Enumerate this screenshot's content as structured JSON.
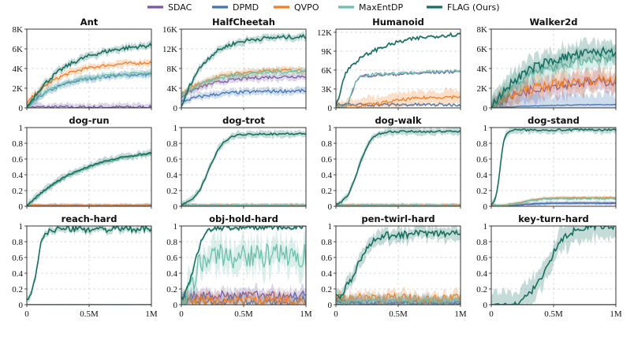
{
  "legend": [
    {
      "name": "SDAC",
      "color": "#7b58a6"
    },
    {
      "name": "DPMD",
      "color": "#3f74b2"
    },
    {
      "name": "QVPO",
      "color": "#f07f26"
    },
    {
      "name": "MaxEntDP",
      "color": "#6cc0ac"
    },
    {
      "name": "FLAG (Ours)",
      "color": "#176f60"
    }
  ],
  "chart_data": [
    {
      "type": "line",
      "title": "Ant",
      "xlim": [
        0,
        1000000
      ],
      "ylim": [
        0,
        8000
      ],
      "yticks": [
        "0",
        "2K",
        "4K",
        "6K",
        "8K"
      ],
      "xticks": [
        "0",
        "0.5M",
        "1M"
      ],
      "series": [
        {
          "name": "SDAC",
          "final": 80
        },
        {
          "name": "DPMD",
          "final": 3500
        },
        {
          "name": "QVPO",
          "final": 4300
        },
        {
          "name": "MaxEntDP",
          "final": 3600
        },
        {
          "name": "FLAG (Ours)",
          "final": 6600
        }
      ]
    },
    {
      "type": "line",
      "title": "HalfCheetah",
      "xlim": [
        0,
        1000000
      ],
      "ylim": [
        0,
        16000
      ],
      "yticks": [
        "0",
        "4K",
        "8K",
        "12K",
        "16K"
      ],
      "xticks": [
        "0",
        "0.5M",
        "1M"
      ],
      "series": [
        {
          "name": "SDAC",
          "final": 6500
        },
        {
          "name": "DPMD",
          "final": 3500
        },
        {
          "name": "QVPO",
          "final": 7800
        },
        {
          "name": "MaxEntDP",
          "final": 7500
        },
        {
          "name": "FLAG (Ours)",
          "final": 14500
        }
      ]
    },
    {
      "type": "line",
      "title": "Humanoid",
      "xlim": [
        0,
        1000000
      ],
      "ylim": [
        0,
        12500
      ],
      "yticks": [
        "0",
        "3K",
        "6K",
        "9K",
        "12K"
      ],
      "xticks": [
        "0",
        "0.5M",
        "1M"
      ],
      "series": [
        {
          "name": "SDAC",
          "final": 5800
        },
        {
          "name": "DPMD",
          "final": 500
        },
        {
          "name": "QVPO",
          "final": 1800
        },
        {
          "name": "MaxEntDP",
          "final": 5900
        },
        {
          "name": "FLAG (Ours)",
          "final": 12000
        }
      ]
    },
    {
      "type": "line",
      "title": "Walker2d",
      "xlim": [
        0,
        1000000
      ],
      "ylim": [
        0,
        8000
      ],
      "yticks": [
        "0",
        "2K",
        "4K",
        "6K",
        "8K"
      ],
      "xticks": [
        "0",
        "0.5M",
        "1M"
      ],
      "series": [
        {
          "name": "SDAC",
          "final": 2800
        },
        {
          "name": "DPMD",
          "final": 400
        },
        {
          "name": "QVPO",
          "final": 3000
        },
        {
          "name": "MaxEntDP",
          "final": 5200
        },
        {
          "name": "FLAG (Ours)",
          "final": 6000
        }
      ]
    },
    {
      "type": "line",
      "title": "dog-run",
      "xlim": [
        0,
        1000000
      ],
      "ylim": [
        0,
        1
      ],
      "yticks": [
        "0",
        "0.2",
        "0.4",
        "0.6",
        "0.8",
        "1"
      ],
      "xticks": [
        "0",
        "0.5M",
        "1M"
      ],
      "series": [
        {
          "name": "SDAC",
          "final": 0.01
        },
        {
          "name": "DPMD",
          "final": 0.01
        },
        {
          "name": "QVPO",
          "final": 0.01
        },
        {
          "name": "MaxEntDP",
          "final": 0.68
        },
        {
          "name": "FLAG (Ours)",
          "final": 0.68
        }
      ]
    },
    {
      "type": "line",
      "title": "dog-trot",
      "xlim": [
        0,
        1000000
      ],
      "ylim": [
        0,
        1
      ],
      "yticks": [
        "0",
        "0.2",
        "0.4",
        "0.6",
        "0.8",
        "1"
      ],
      "xticks": [
        "0",
        "0.5M",
        "1M"
      ],
      "series": [
        {
          "name": "SDAC",
          "final": 0.01
        },
        {
          "name": "DPMD",
          "final": 0.01
        },
        {
          "name": "QVPO",
          "final": 0.01
        },
        {
          "name": "MaxEntDP",
          "final": 0.01
        },
        {
          "name": "FLAG (Ours)",
          "final": 0.92
        }
      ]
    },
    {
      "type": "line",
      "title": "dog-walk",
      "xlim": [
        0,
        1000000
      ],
      "ylim": [
        0,
        1
      ],
      "yticks": [
        "0",
        "0.2",
        "0.4",
        "0.6",
        "0.8",
        "1"
      ],
      "xticks": [
        "0",
        "0.5M",
        "1M"
      ],
      "series": [
        {
          "name": "SDAC",
          "final": 0.01
        },
        {
          "name": "DPMD",
          "final": 0.01
        },
        {
          "name": "QVPO",
          "final": 0.01
        },
        {
          "name": "MaxEntDP",
          "final": 0.01
        },
        {
          "name": "FLAG (Ours)",
          "final": 0.95
        }
      ]
    },
    {
      "type": "line",
      "title": "dog-stand",
      "xlim": [
        0,
        1000000
      ],
      "ylim": [
        0,
        1
      ],
      "yticks": [
        "0",
        "0.2",
        "0.4",
        "0.6",
        "0.8",
        "1"
      ],
      "xticks": [
        "0",
        "0.5M",
        "1M"
      ],
      "series": [
        {
          "name": "SDAC",
          "final": 0.04
        },
        {
          "name": "DPMD",
          "final": 0.04
        },
        {
          "name": "QVPO",
          "final": 0.11
        },
        {
          "name": "MaxEntDP",
          "final": 0.1
        },
        {
          "name": "FLAG (Ours)",
          "final": 0.97
        }
      ]
    },
    {
      "type": "line",
      "title": "reach-hard",
      "xlim": [
        0,
        1000000
      ],
      "ylim": [
        0,
        1
      ],
      "yticks": [
        "0",
        "0.2",
        "0.4",
        "0.6",
        "0.8",
        "1"
      ],
      "xticks": [
        "0",
        "0.5M",
        "1M"
      ],
      "series": [
        {
          "name": "SDAC",
          "final": 0.0
        },
        {
          "name": "DPMD",
          "final": 0.0
        },
        {
          "name": "QVPO",
          "final": 0.0
        },
        {
          "name": "MaxEntDP",
          "final": 0.0
        },
        {
          "name": "FLAG (Ours)",
          "final": 0.96
        }
      ]
    },
    {
      "type": "line",
      "title": "obj-hold-hard",
      "xlim": [
        0,
        1000000
      ],
      "ylim": [
        0,
        1
      ],
      "yticks": [
        "0",
        "0.2",
        "0.4",
        "0.6",
        "0.8",
        "1"
      ],
      "xticks": [
        "0",
        "0.5M",
        "1M"
      ],
      "series": [
        {
          "name": "SDAC",
          "final": 0.12
        },
        {
          "name": "DPMD",
          "final": 0.05
        },
        {
          "name": "QVPO",
          "final": 0.05
        },
        {
          "name": "MaxEntDP",
          "final": 0.62
        },
        {
          "name": "FLAG (Ours)",
          "final": 0.98
        }
      ]
    },
    {
      "type": "line",
      "title": "pen-twirl-hard",
      "xlim": [
        0,
        1000000
      ],
      "ylim": [
        0,
        1
      ],
      "yticks": [
        "0",
        "0.2",
        "0.4",
        "0.6",
        "0.8",
        "1"
      ],
      "xticks": [
        "0",
        "0.5M",
        "1M"
      ],
      "series": [
        {
          "name": "SDAC",
          "final": 0.03
        },
        {
          "name": "DPMD",
          "final": 0.02
        },
        {
          "name": "QVPO",
          "final": 0.08
        },
        {
          "name": "MaxEntDP",
          "final": 0.05
        },
        {
          "name": "FLAG (Ours)",
          "final": 0.9
        }
      ]
    },
    {
      "type": "line",
      "title": "key-turn-hard",
      "xlim": [
        0,
        1000000
      ],
      "ylim": [
        0,
        1
      ],
      "yticks": [
        "0",
        "0.2",
        "0.4",
        "0.6",
        "0.8",
        "1"
      ],
      "xticks": [
        "0",
        "0.5M",
        "1M"
      ],
      "series": [
        {
          "name": "SDAC",
          "final": 0.0
        },
        {
          "name": "DPMD",
          "final": 0.0
        },
        {
          "name": "QVPO",
          "final": 0.0
        },
        {
          "name": "MaxEntDP",
          "final": 0.0
        },
        {
          "name": "FLAG (Ours)",
          "final": 0.98
        }
      ]
    }
  ]
}
